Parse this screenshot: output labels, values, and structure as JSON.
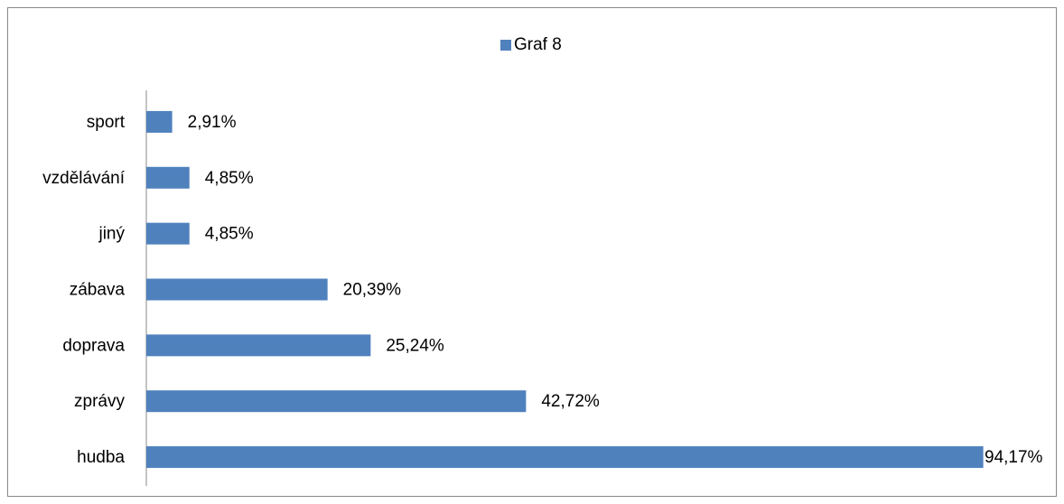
{
  "chart_data": {
    "type": "bar",
    "orientation": "horizontal",
    "categories": [
      "sport",
      "vzdělávání",
      "jiný",
      "zábava",
      "doprava",
      "zprávy",
      "hudba"
    ],
    "series": [
      {
        "name": "Graf 8",
        "color": "#4f81bd",
        "values": [
          2.91,
          4.85,
          4.85,
          20.39,
          25.24,
          42.72,
          94.17
        ],
        "value_labels": [
          "2,91%",
          "4,85%",
          "4,85%",
          "20,39%",
          "25,24%",
          "42,72%",
          "94,17%"
        ]
      }
    ],
    "xlim": [
      0,
      100
    ],
    "legend": "top"
  }
}
